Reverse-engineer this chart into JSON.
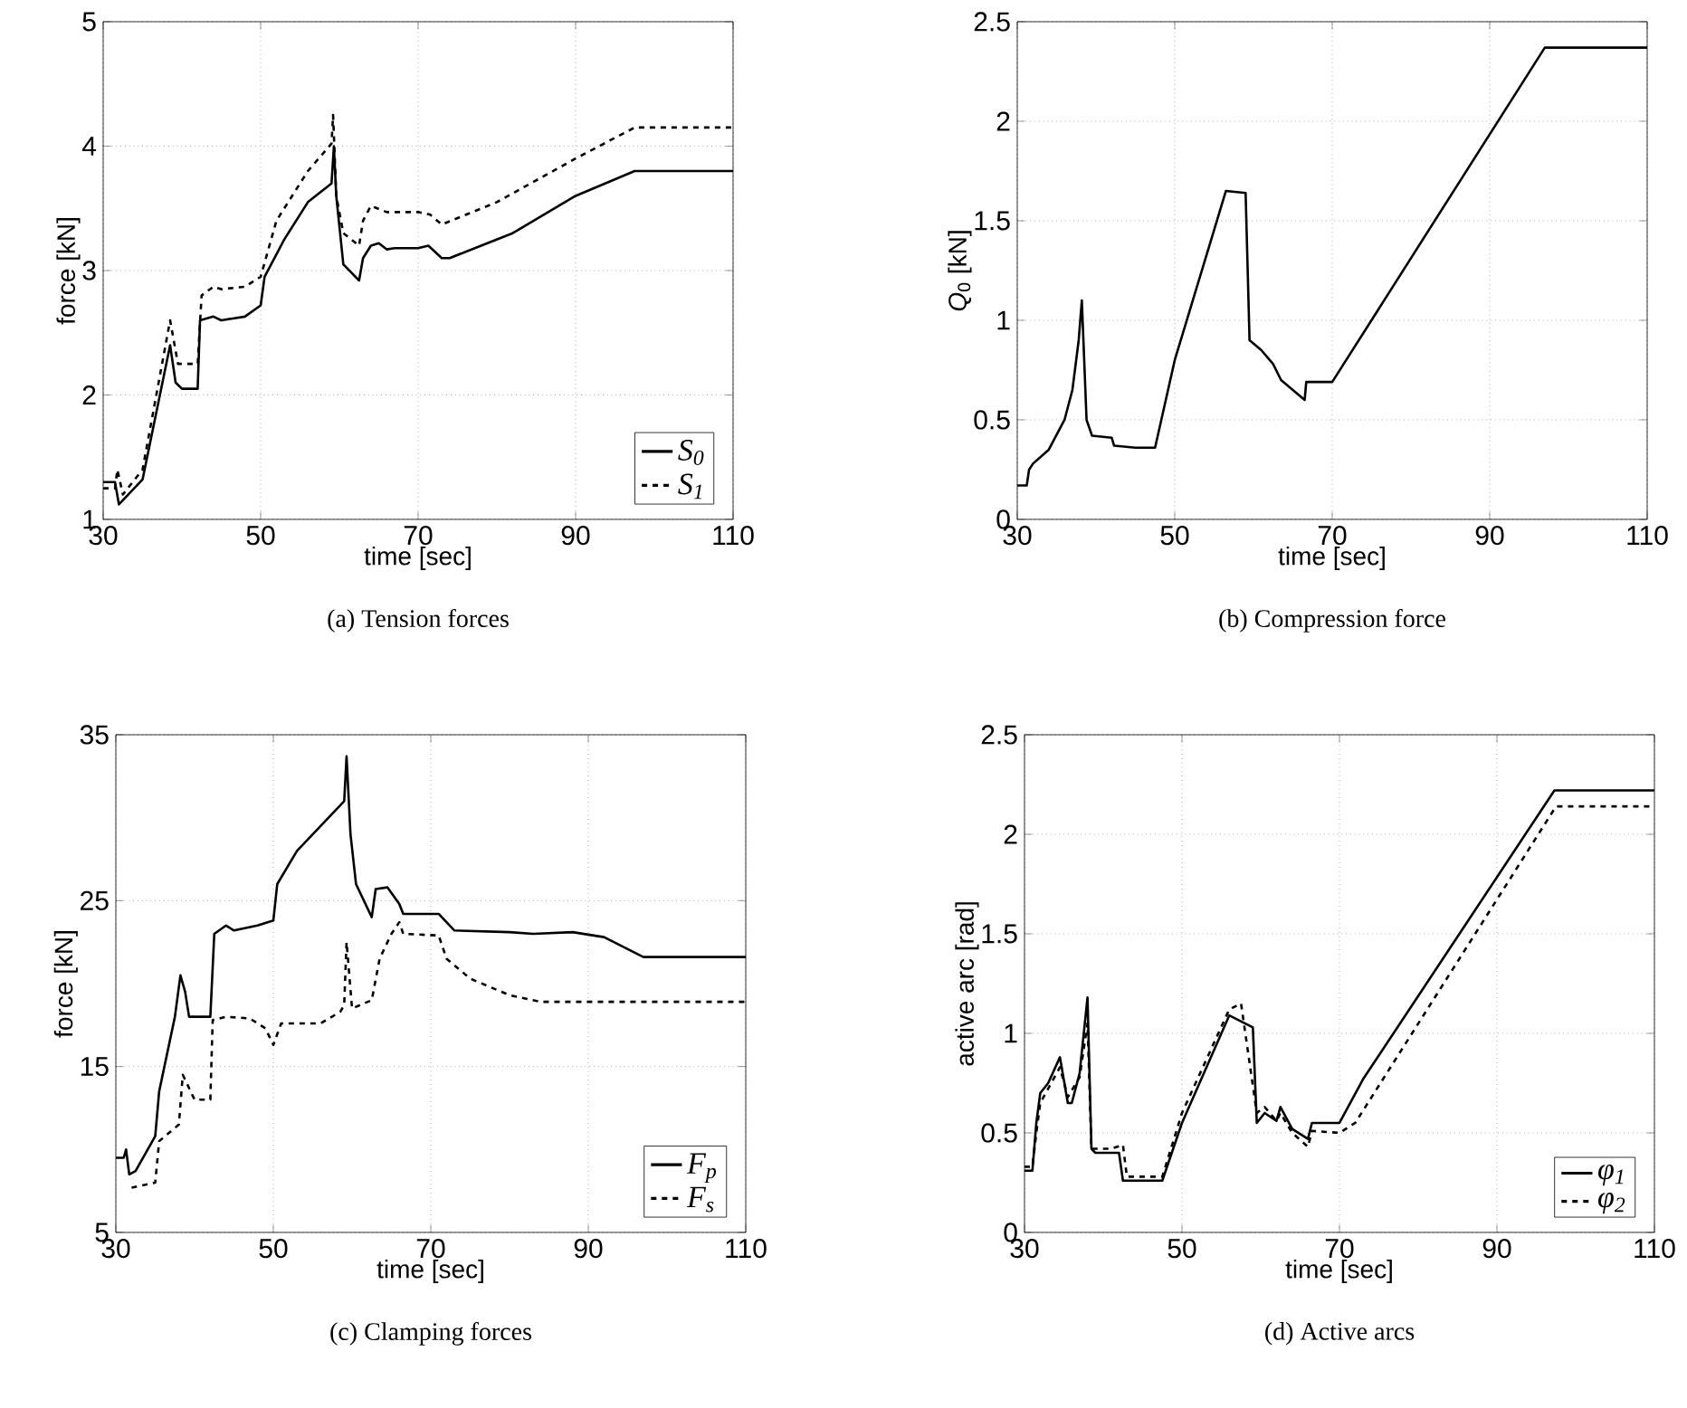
{
  "chart_data": [
    {
      "type": "line",
      "title": "(a) Tension forces",
      "xlabel": "time [sec]",
      "ylabel": "force [kN]",
      "xlim": [
        30,
        110
      ],
      "ylim": [
        1,
        5
      ],
      "xticks": [
        30,
        50,
        70,
        90,
        110
      ],
      "yticks": [
        1,
        2,
        3,
        4,
        5
      ],
      "grid": true,
      "legend": "bottom right",
      "series": [
        {
          "name": "S$_{0}$",
          "color": "#000000",
          "line_style": "solid",
          "x": [
            30,
            31.5,
            32,
            35,
            38.5,
            39.2,
            40,
            42,
            42.3,
            44,
            45,
            48,
            50,
            50.5,
            53,
            56,
            59,
            59.3,
            59.6,
            60.5,
            62.5,
            63,
            64,
            65,
            66,
            67,
            70,
            71.3,
            73,
            74,
            78,
            82,
            90,
            97.5,
            110
          ],
          "values": [
            1.3,
            1.3,
            1.12,
            1.32,
            2.4,
            2.1,
            2.05,
            2.05,
            2.6,
            2.63,
            2.6,
            2.63,
            2.72,
            2.95,
            3.25,
            3.55,
            3.7,
            4.0,
            3.6,
            3.05,
            2.92,
            3.1,
            3.2,
            3.22,
            3.17,
            3.18,
            3.18,
            3.2,
            3.1,
            3.1,
            3.2,
            3.3,
            3.6,
            3.8,
            3.8
          ]
        },
        {
          "name": "S$_{1}$",
          "color": "#000000",
          "line_style": "dashed",
          "x": [
            30,
            31.5,
            31.8,
            32.5,
            35,
            38.5,
            39.5,
            42,
            42.5,
            44,
            45,
            48,
            50,
            52,
            56,
            59,
            59.2,
            59.6,
            60.5,
            62.5,
            63,
            64,
            66,
            70,
            71.5,
            73,
            80,
            90,
            97.5,
            110
          ],
          "values": [
            1.25,
            1.25,
            1.4,
            1.2,
            1.4,
            2.6,
            2.25,
            2.25,
            2.8,
            2.87,
            2.85,
            2.87,
            2.95,
            3.4,
            3.8,
            4.02,
            4.25,
            3.6,
            3.3,
            3.2,
            3.4,
            3.52,
            3.47,
            3.47,
            3.45,
            3.37,
            3.55,
            3.9,
            4.15,
            4.15
          ]
        }
      ]
    },
    {
      "type": "line",
      "title": "(b) Compression force",
      "xlabel": "time [sec]",
      "ylabel": "*Q*$_{0}$ [kN]",
      "xlim": [
        30,
        110
      ],
      "ylim": [
        0,
        2.5
      ],
      "xticks": [
        30,
        50,
        70,
        90,
        110
      ],
      "yticks": [
        0,
        0.5,
        1,
        1.5,
        2,
        2.5
      ],
      "grid": true,
      "series": [
        {
          "color": "#000000",
          "line_style": "solid",
          "x": [
            30,
            31.2,
            31.5,
            32,
            34,
            36,
            37,
            37.8,
            38.2,
            38.8,
            39.5,
            42,
            42.3,
            45,
            47.5,
            50,
            56.5,
            59,
            59.5,
            61,
            62.5,
            63.5,
            66.5,
            66.7,
            70,
            97,
            110
          ],
          "values": [
            0.17,
            0.17,
            0.25,
            0.28,
            0.35,
            0.5,
            0.65,
            0.9,
            1.1,
            0.5,
            0.42,
            0.41,
            0.37,
            0.36,
            0.36,
            0.8,
            1.65,
            1.64,
            0.9,
            0.85,
            0.78,
            0.7,
            0.6,
            0.69,
            0.69,
            2.37,
            2.37
          ]
        }
      ]
    },
    {
      "type": "line",
      "title": "(c) Clamping forces",
      "xlabel": "time [sec]",
      "ylabel": "force [kN]",
      "xlim": [
        30,
        110
      ],
      "ylim": [
        5,
        35
      ],
      "xticks": [
        30,
        50,
        70,
        90,
        110
      ],
      "yticks": [
        5,
        15,
        25,
        35
      ],
      "grid": true,
      "legend": "bottom right",
      "series": [
        {
          "name": "F$_{p}$",
          "color": "#000000",
          "line_style": "solid",
          "x": [
            30,
            31,
            31.3,
            31.7,
            32.5,
            35,
            35.5,
            37.5,
            38.2,
            38.8,
            39.3,
            42,
            42.5,
            44,
            45,
            48,
            50,
            50.5,
            53,
            56,
            59,
            59.3,
            59.8,
            60.5,
            62.5,
            63,
            64.5,
            66,
            66.5,
            71,
            73,
            80,
            83,
            88,
            92,
            97,
            110
          ],
          "values": [
            9.5,
            9.5,
            10,
            8.5,
            8.7,
            10.8,
            13.5,
            18,
            20.5,
            19.5,
            18,
            18,
            23,
            23.5,
            23.2,
            23.5,
            23.8,
            26,
            28,
            29.5,
            31,
            33.7,
            29,
            26,
            24,
            25.7,
            25.8,
            24.8,
            24.2,
            24.2,
            23.2,
            23.1,
            23,
            23.1,
            22.8,
            21.6,
            21.6
          ]
        },
        {
          "name": "F$_{s}$",
          "color": "#000000",
          "line_style": "dashed",
          "x": [
            32,
            35,
            35.5,
            38,
            38.5,
            39.5,
            40,
            42,
            42.3,
            44,
            47,
            49,
            50,
            51,
            56,
            58.5,
            59,
            59.3,
            60,
            62.5,
            63.5,
            65,
            66,
            66.5,
            71,
            72,
            75,
            80,
            84,
            110
          ],
          "values": [
            7.7,
            8,
            10.5,
            11.5,
            14.5,
            13.5,
            13,
            13,
            17.8,
            18,
            17.9,
            17.3,
            16.3,
            17.6,
            17.6,
            18.3,
            18.7,
            22.5,
            18.5,
            19,
            21.5,
            23,
            23.7,
            23,
            22.9,
            21.5,
            20.3,
            19.3,
            18.9,
            18.9
          ]
        }
      ]
    },
    {
      "type": "line",
      "title": "(d) Active arcs",
      "xlabel": "time [sec]",
      "ylabel": "active arc [rad]",
      "xlim": [
        30,
        110
      ],
      "ylim": [
        0,
        2.5
      ],
      "xticks": [
        30,
        50,
        70,
        90,
        110
      ],
      "yticks": [
        0,
        0.5,
        1,
        1.5,
        2,
        2.5
      ],
      "grid": true,
      "legend": "bottom right",
      "series": [
        {
          "name": "φ$_{1}$",
          "color": "#000000",
          "line_style": "solid",
          "x": [
            30,
            31,
            31.5,
            32,
            33,
            34.5,
            35.5,
            36,
            37,
            38,
            38.5,
            39,
            42,
            42.5,
            47.5,
            50,
            56,
            59,
            59.5,
            60.5,
            62,
            62.5,
            64,
            66,
            66.5,
            70,
            73,
            97.3,
            110
          ],
          "values": [
            0.31,
            0.31,
            0.55,
            0.7,
            0.75,
            0.88,
            0.65,
            0.65,
            0.8,
            1.18,
            0.42,
            0.4,
            0.4,
            0.26,
            0.26,
            0.55,
            1.09,
            1.03,
            0.55,
            0.6,
            0.56,
            0.63,
            0.52,
            0.47,
            0.55,
            0.55,
            0.77,
            2.22,
            2.22
          ]
        },
        {
          "name": "φ$_{2}$",
          "color": "#000000",
          "line_style": "dashed",
          "x": [
            30,
            31,
            31.5,
            32,
            34.5,
            35.5,
            37,
            38,
            38.5,
            41,
            42.5,
            43,
            47.5,
            50,
            56,
            57.5,
            59.5,
            60.5,
            62,
            62.5,
            64,
            66,
            66.5,
            70,
            72,
            97.5,
            110
          ],
          "values": [
            0.33,
            0.33,
            0.5,
            0.65,
            0.83,
            0.68,
            0.78,
            1.05,
            0.42,
            0.42,
            0.44,
            0.28,
            0.28,
            0.6,
            1.12,
            1.15,
            0.6,
            0.63,
            0.56,
            0.6,
            0.5,
            0.43,
            0.51,
            0.5,
            0.55,
            2.14,
            2.14
          ]
        }
      ]
    }
  ]
}
